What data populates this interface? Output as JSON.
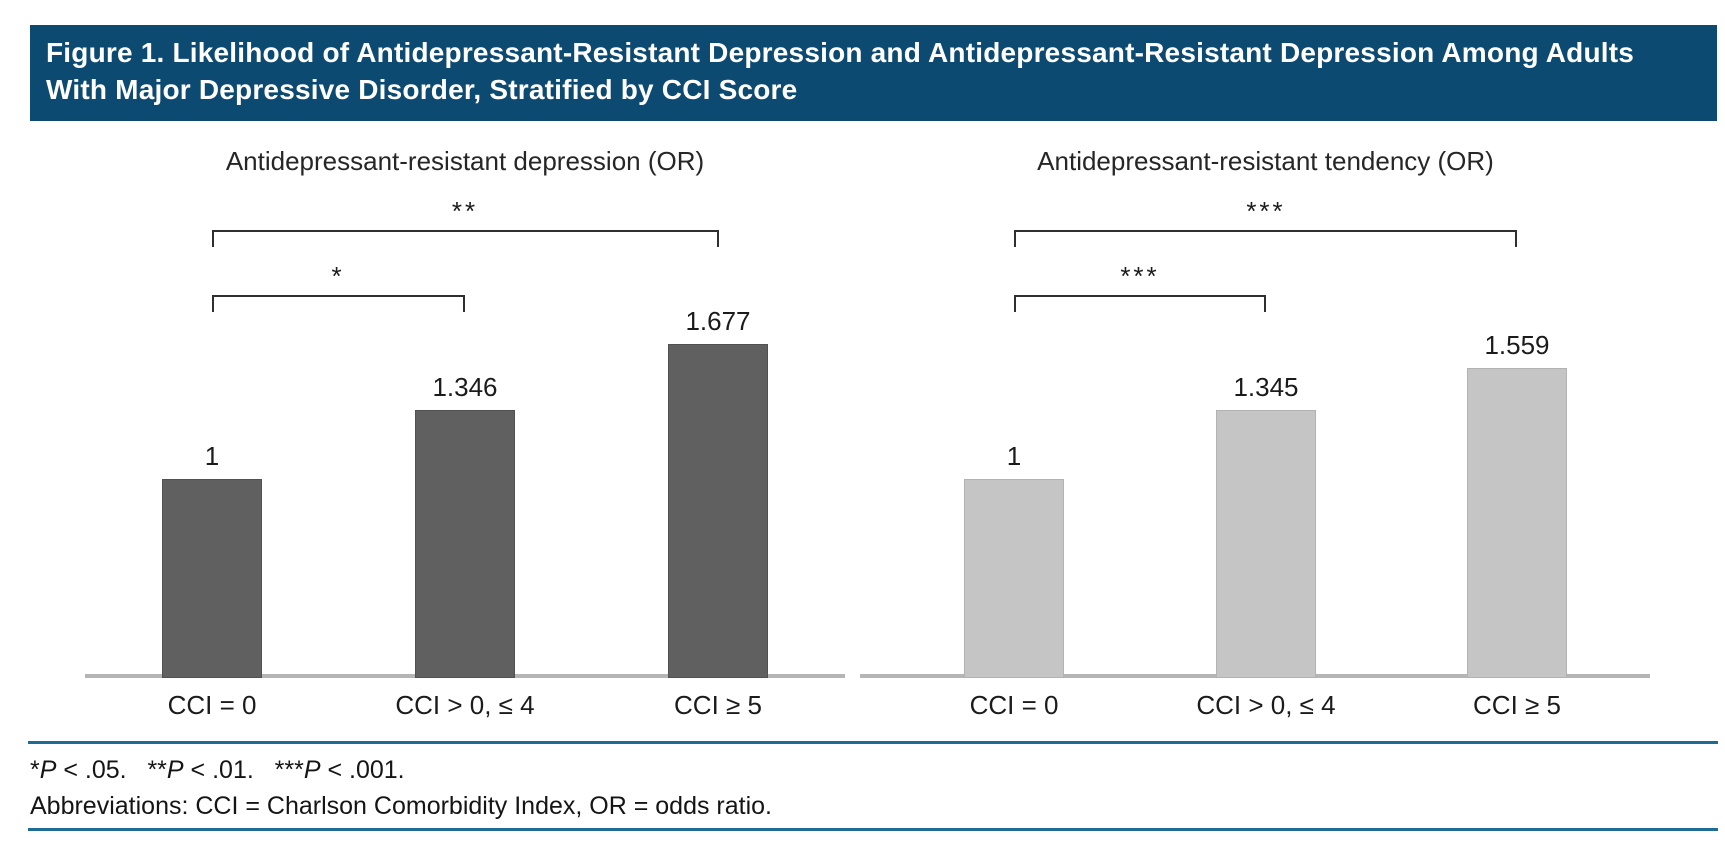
{
  "header": {
    "title": "Figure 1. Likelihood of Antidepressant-Resistant Depression and Antidepressant-Resistant Depression Among Adults With Major Depressive Disorder, Stratified by CCI Score"
  },
  "chart_data": [
    {
      "type": "bar",
      "title": "Antidepressant-resistant depression (OR)",
      "categories": [
        "CCI = 0",
        "CCI > 0, ≤ 4",
        "CCI ≥ 5"
      ],
      "values": [
        1,
        1.346,
        1.677
      ],
      "value_labels": [
        "1",
        "1.346",
        "1.677"
      ],
      "xlabel": "",
      "ylabel": "",
      "ylim": [
        0,
        2
      ],
      "grid": false,
      "legend": "none",
      "bar_color": "#606060",
      "bar_border_color": "#515151",
      "significance_brackets": [
        {
          "from_index": 0,
          "to_index": 1,
          "label": "*"
        },
        {
          "from_index": 0,
          "to_index": 2,
          "label": "**"
        }
      ]
    },
    {
      "type": "bar",
      "title": "Antidepressant-resistant tendency (OR)",
      "categories": [
        "CCI = 0",
        "CCI > 0, ≤ 4",
        "CCI ≥ 5"
      ],
      "values": [
        1,
        1.345,
        1.559
      ],
      "value_labels": [
        "1",
        "1.345",
        "1.559"
      ],
      "xlabel": "",
      "ylabel": "",
      "ylim": [
        0,
        2
      ],
      "grid": false,
      "legend": "none",
      "bar_color": "#c5c5c5",
      "bar_border_color": "#b2b2b2",
      "significance_brackets": [
        {
          "from_index": 0,
          "to_index": 1,
          "label": "***"
        },
        {
          "from_index": 0,
          "to_index": 2,
          "label": "***"
        }
      ]
    }
  ],
  "footer": {
    "significance_note": "*P < .05.   **P < .01.   ***P < .001.",
    "abbreviations_note": "Abbreviations: CCI = Charlson Comorbidity Index, OR = odds ratio."
  },
  "colors": {
    "header_bg": "#0d4a72",
    "rule_blue": "#1e6b94",
    "axis_gray": "#b5b5b5",
    "bracket": "#2f2f2f",
    "dark_bar": "#606060",
    "light_bar": "#c5c5c5"
  }
}
